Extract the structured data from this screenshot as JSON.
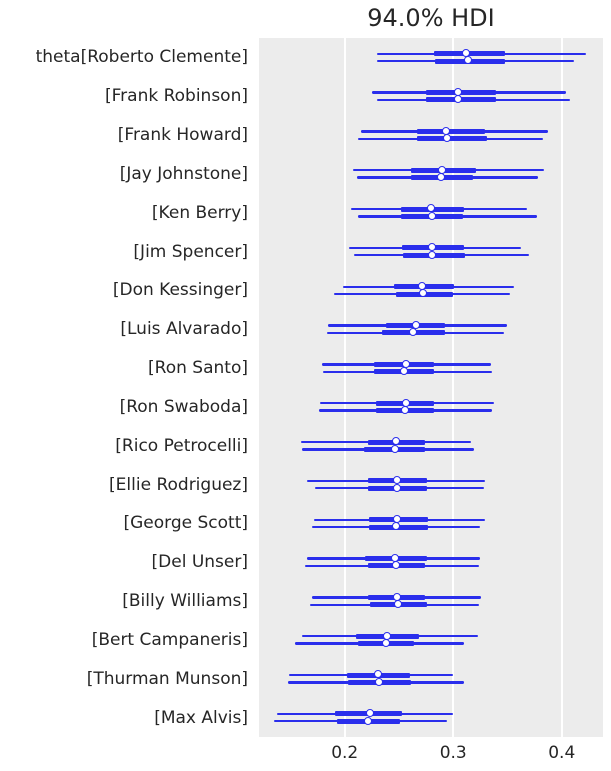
{
  "chart_data": {
    "type": "scatter",
    "variant": "forest-plot (ArviZ plot_forest style: per-row 94% HDI thin line, interquartile thick line, white median dot; 2 MCMC chains per parameter)",
    "title": "94.0% HDI",
    "xlabel": "",
    "ylabel": "",
    "xlim": [
      0.121,
      0.438
    ],
    "xticks": [
      0.2,
      0.3,
      0.4
    ],
    "xtick_labels": [
      "0.2",
      "0.3",
      "0.4"
    ],
    "grid": "vertical-gridlines-only",
    "legend": "none",
    "hdi_prob": 0.94,
    "colors": {
      "line": "#2a2eec",
      "marker_fill": "#ffffff",
      "plot_bg": "#ececec",
      "gridline": "#ffffff",
      "text": "#262626"
    },
    "rows": [
      {
        "label": "theta[Roberto Clemente]",
        "chains": [
          {
            "hdi_lo": 0.23,
            "q_lo": 0.282,
            "median": 0.312,
            "q_hi": 0.348,
            "hdi_hi": 0.422
          },
          {
            "hdi_lo": 0.23,
            "q_lo": 0.283,
            "median": 0.314,
            "q_hi": 0.348,
            "hdi_hi": 0.411
          }
        ]
      },
      {
        "label": "[Frank Robinson]",
        "chains": [
          {
            "hdi_lo": 0.225,
            "q_lo": 0.275,
            "median": 0.305,
            "q_hi": 0.339,
            "hdi_hi": 0.404
          },
          {
            "hdi_lo": 0.23,
            "q_lo": 0.275,
            "median": 0.305,
            "q_hi": 0.339,
            "hdi_hi": 0.408
          }
        ]
      },
      {
        "label": "[Frank Howard]",
        "chains": [
          {
            "hdi_lo": 0.215,
            "q_lo": 0.267,
            "median": 0.294,
            "q_hi": 0.329,
            "hdi_hi": 0.387
          },
          {
            "hdi_lo": 0.212,
            "q_lo": 0.267,
            "median": 0.295,
            "q_hi": 0.331,
            "hdi_hi": 0.383
          }
        ]
      },
      {
        "label": "[Jay Johnstone]",
        "chains": [
          {
            "hdi_lo": 0.208,
            "q_lo": 0.261,
            "median": 0.29,
            "q_hi": 0.321,
            "hdi_hi": 0.384
          },
          {
            "hdi_lo": 0.211,
            "q_lo": 0.261,
            "median": 0.289,
            "q_hi": 0.318,
            "hdi_hi": 0.378
          }
        ]
      },
      {
        "label": "[Ken Berry]",
        "chains": [
          {
            "hdi_lo": 0.206,
            "q_lo": 0.252,
            "median": 0.28,
            "q_hi": 0.31,
            "hdi_hi": 0.368
          },
          {
            "hdi_lo": 0.212,
            "q_lo": 0.252,
            "median": 0.281,
            "q_hi": 0.309,
            "hdi_hi": 0.377
          }
        ]
      },
      {
        "label": "[Jim Spencer]",
        "chains": [
          {
            "hdi_lo": 0.204,
            "q_lo": 0.253,
            "median": 0.281,
            "q_hi": 0.31,
            "hdi_hi": 0.362
          },
          {
            "hdi_lo": 0.209,
            "q_lo": 0.254,
            "median": 0.281,
            "q_hi": 0.311,
            "hdi_hi": 0.37
          }
        ]
      },
      {
        "label": "[Don Kessinger]",
        "chains": [
          {
            "hdi_lo": 0.198,
            "q_lo": 0.245,
            "median": 0.272,
            "q_hi": 0.301,
            "hdi_hi": 0.356
          },
          {
            "hdi_lo": 0.19,
            "q_lo": 0.247,
            "median": 0.273,
            "q_hi": 0.3,
            "hdi_hi": 0.352
          }
        ]
      },
      {
        "label": "[Luis Alvarado]",
        "chains": [
          {
            "hdi_lo": 0.185,
            "q_lo": 0.238,
            "median": 0.266,
            "q_hi": 0.292,
            "hdi_hi": 0.35
          },
          {
            "hdi_lo": 0.184,
            "q_lo": 0.234,
            "median": 0.264,
            "q_hi": 0.292,
            "hdi_hi": 0.347
          }
        ]
      },
      {
        "label": "[Ron Santo]",
        "chains": [
          {
            "hdi_lo": 0.179,
            "q_lo": 0.227,
            "median": 0.257,
            "q_hi": 0.282,
            "hdi_hi": 0.335
          },
          {
            "hdi_lo": 0.18,
            "q_lo": 0.227,
            "median": 0.255,
            "q_hi": 0.282,
            "hdi_hi": 0.336
          }
        ]
      },
      {
        "label": "[Ron Swaboda]",
        "chains": [
          {
            "hdi_lo": 0.177,
            "q_lo": 0.229,
            "median": 0.257,
            "q_hi": 0.282,
            "hdi_hi": 0.338
          },
          {
            "hdi_lo": 0.176,
            "q_lo": 0.229,
            "median": 0.256,
            "q_hi": 0.282,
            "hdi_hi": 0.336
          }
        ]
      },
      {
        "label": "[Rico Petrocelli]",
        "chains": [
          {
            "hdi_lo": 0.16,
            "q_lo": 0.221,
            "median": 0.248,
            "q_hi": 0.274,
            "hdi_hi": 0.316
          },
          {
            "hdi_lo": 0.161,
            "q_lo": 0.218,
            "median": 0.247,
            "q_hi": 0.274,
            "hdi_hi": 0.319
          }
        ]
      },
      {
        "label": "[Ellie Rodriguez]",
        "chains": [
          {
            "hdi_lo": 0.165,
            "q_lo": 0.221,
            "median": 0.249,
            "q_hi": 0.276,
            "hdi_hi": 0.329
          },
          {
            "hdi_lo": 0.173,
            "q_lo": 0.221,
            "median": 0.249,
            "q_hi": 0.276,
            "hdi_hi": 0.328
          }
        ]
      },
      {
        "label": "[George Scott]",
        "chains": [
          {
            "hdi_lo": 0.172,
            "q_lo": 0.222,
            "median": 0.249,
            "q_hi": 0.277,
            "hdi_hi": 0.329
          },
          {
            "hdi_lo": 0.17,
            "q_lo": 0.222,
            "median": 0.248,
            "q_hi": 0.277,
            "hdi_hi": 0.325
          }
        ]
      },
      {
        "label": "[Del Unser]",
        "chains": [
          {
            "hdi_lo": 0.165,
            "q_lo": 0.219,
            "median": 0.247,
            "q_hi": 0.276,
            "hdi_hi": 0.325
          },
          {
            "hdi_lo": 0.163,
            "q_lo": 0.221,
            "median": 0.248,
            "q_hi": 0.274,
            "hdi_hi": 0.324
          }
        ]
      },
      {
        "label": "[Billy Williams]",
        "chains": [
          {
            "hdi_lo": 0.17,
            "q_lo": 0.221,
            "median": 0.249,
            "q_hi": 0.274,
            "hdi_hi": 0.326
          },
          {
            "hdi_lo": 0.168,
            "q_lo": 0.223,
            "median": 0.25,
            "q_hi": 0.276,
            "hdi_hi": 0.324
          }
        ]
      },
      {
        "label": "[Bert Campaneris]",
        "chains": [
          {
            "hdi_lo": 0.161,
            "q_lo": 0.21,
            "median": 0.24,
            "q_hi": 0.268,
            "hdi_hi": 0.323
          },
          {
            "hdi_lo": 0.154,
            "q_lo": 0.212,
            "median": 0.239,
            "q_hi": 0.264,
            "hdi_hi": 0.31
          }
        ]
      },
      {
        "label": "[Thurman Munson]",
        "chains": [
          {
            "hdi_lo": 0.149,
            "q_lo": 0.202,
            "median": 0.231,
            "q_hi": 0.26,
            "hdi_hi": 0.3
          },
          {
            "hdi_lo": 0.148,
            "q_lo": 0.203,
            "median": 0.232,
            "q_hi": 0.261,
            "hdi_hi": 0.31
          }
        ]
      },
      {
        "label": "[Max Alvis]",
        "chains": [
          {
            "hdi_lo": 0.138,
            "q_lo": 0.191,
            "median": 0.224,
            "q_hi": 0.253,
            "hdi_hi": 0.3
          },
          {
            "hdi_lo": 0.135,
            "q_lo": 0.193,
            "median": 0.222,
            "q_hi": 0.251,
            "hdi_hi": 0.294
          }
        ]
      }
    ]
  }
}
